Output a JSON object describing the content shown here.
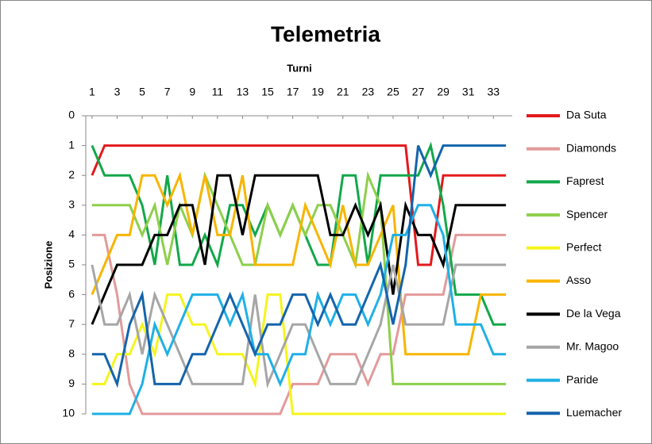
{
  "chart_data": {
    "type": "line",
    "title": "Telemetria",
    "xlabel": "Turni",
    "ylabel": "Posizione",
    "x": [
      1,
      2,
      3,
      4,
      5,
      6,
      7,
      8,
      9,
      10,
      11,
      12,
      13,
      14,
      15,
      16,
      17,
      18,
      19,
      20,
      21,
      22,
      23,
      24,
      25,
      26,
      27,
      28,
      29,
      30,
      31,
      32,
      33,
      34
    ],
    "xlim": [
      0.5,
      34.5
    ],
    "xticks": [
      1,
      3,
      5,
      7,
      9,
      11,
      13,
      15,
      17,
      19,
      21,
      23,
      25,
      27,
      29,
      31,
      33
    ],
    "ylim": [
      0,
      10
    ],
    "yticks": [
      0,
      1,
      2,
      3,
      4,
      5,
      6,
      7,
      8,
      9,
      10
    ],
    "y_reversed": true,
    "grid": false,
    "legend": "right",
    "series": [
      {
        "name": "Da Suta",
        "color": "#e31a1c",
        "values": [
          2,
          1,
          1,
          1,
          1,
          1,
          1,
          1,
          1,
          1,
          1,
          1,
          1,
          1,
          1,
          1,
          1,
          1,
          1,
          1,
          1,
          1,
          1,
          1,
          1,
          1,
          5,
          5,
          2,
          2,
          2,
          2,
          2,
          2
        ]
      },
      {
        "name": "Diamonds",
        "color": "#e39a9a",
        "values": [
          4,
          4,
          6,
          9,
          10,
          10,
          10,
          10,
          10,
          10,
          10,
          10,
          10,
          10,
          10,
          10,
          9,
          9,
          9,
          8,
          8,
          8,
          9,
          8,
          8,
          6,
          6,
          6,
          6,
          4,
          4,
          4,
          4,
          4
        ]
      },
      {
        "name": "Faprest",
        "color": "#12a84a",
        "values": [
          1,
          2,
          2,
          2,
          3,
          5,
          2,
          5,
          5,
          4,
          5,
          3,
          3,
          4,
          3,
          4,
          3,
          4,
          5,
          5,
          2,
          2,
          5,
          2,
          2,
          2,
          2,
          1,
          3,
          6,
          6,
          6,
          7,
          7
        ]
      },
      {
        "name": "Spencer",
        "color": "#8dcf4a",
        "values": [
          3,
          3,
          3,
          3,
          4,
          3,
          5,
          3,
          4,
          2,
          3,
          4,
          5,
          5,
          3,
          4,
          3,
          4,
          3,
          3,
          4,
          5,
          2,
          3,
          9,
          9,
          9,
          9,
          9,
          9,
          9,
          9,
          9,
          9
        ]
      },
      {
        "name": "Perfect",
        "color": "#f5f51c",
        "values": [
          9,
          9,
          8,
          8,
          7,
          8,
          6,
          6,
          7,
          7,
          8,
          8,
          8,
          9,
          6,
          6,
          10,
          10,
          10,
          10,
          10,
          10,
          10,
          10,
          10,
          10,
          10,
          10,
          10,
          10,
          10,
          10,
          10,
          10
        ]
      },
      {
        "name": "Asso",
        "color": "#f7b500",
        "values": [
          6,
          5,
          4,
          4,
          2,
          2,
          3,
          2,
          4,
          2,
          4,
          4,
          2,
          5,
          5,
          5,
          5,
          3,
          4,
          5,
          3,
          5,
          5,
          4,
          3,
          8,
          8,
          8,
          8,
          8,
          8,
          6,
          6,
          6
        ]
      },
      {
        "name": "De la Vega",
        "color": "#000000",
        "values": [
          7,
          6,
          5,
          5,
          5,
          4,
          4,
          3,
          3,
          5,
          2,
          2,
          4,
          2,
          2,
          2,
          2,
          2,
          2,
          4,
          4,
          3,
          4,
          3,
          6,
          3,
          4,
          4,
          5,
          3,
          3,
          3,
          3,
          3
        ]
      },
      {
        "name": "Mr. Magoo",
        "color": "#a6a6a6",
        "values": [
          5,
          7,
          7,
          6,
          8,
          6,
          7,
          8,
          9,
          9,
          9,
          9,
          9,
          6,
          9,
          8,
          7,
          7,
          8,
          9,
          9,
          9,
          8,
          7,
          5,
          7,
          7,
          7,
          7,
          5,
          5,
          5,
          5,
          5
        ]
      },
      {
        "name": "Paride",
        "color": "#1fb0e6",
        "values": [
          10,
          10,
          10,
          10,
          9,
          7,
          8,
          7,
          6,
          6,
          6,
          7,
          6,
          8,
          8,
          9,
          8,
          8,
          6,
          7,
          6,
          6,
          7,
          6,
          4,
          4,
          3,
          3,
          4,
          7,
          7,
          7,
          8,
          8
        ]
      },
      {
        "name": "Luemacher",
        "color": "#1464ac",
        "values": [
          8,
          8,
          9,
          7,
          6,
          9,
          9,
          9,
          8,
          8,
          7,
          6,
          7,
          8,
          7,
          7,
          6,
          6,
          7,
          6,
          7,
          7,
          6,
          5,
          7,
          5,
          1,
          2,
          1,
          1,
          1,
          1,
          1,
          1
        ]
      }
    ]
  }
}
